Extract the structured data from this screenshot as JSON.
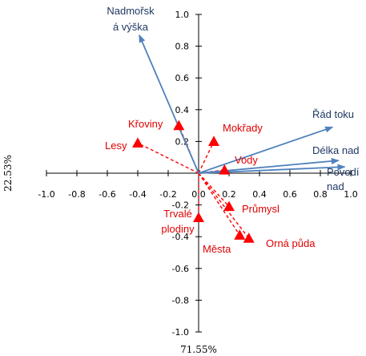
{
  "chart_data": {
    "type": "scatter",
    "subtype": "ordination-biplot",
    "xlabel": "71.55%",
    "ylabel": "22.53%",
    "xlim": [
      -1.0,
      1.0
    ],
    "ylim": [
      -1.0,
      1.0
    ],
    "x_ticks": [
      "-1.0",
      "-0.8",
      "-0.6",
      "-0.4",
      "-0.2",
      "0.0",
      "0.2",
      "0.4",
      "0.6",
      "0.8",
      "1.0"
    ],
    "y_ticks": [
      "-1.0",
      "-0.8",
      "-0.6",
      "-0.4",
      "-0.2",
      "0.0",
      "0.2",
      "0.4",
      "0.6",
      "0.8",
      "1.0"
    ],
    "grid": false,
    "legend": "none",
    "colors": {
      "environment": "#4F81BD",
      "environment_text": "#1F3864",
      "species": "#FF0000",
      "species_text": "#E00000"
    },
    "environmental_vectors": [
      {
        "label_lines": [
          "Nadmořsk",
          "á výška"
        ],
        "x": -0.39,
        "y": 0.87
      },
      {
        "label_lines": [
          "Řád toku"
        ],
        "x": 0.88,
        "y": 0.29
      },
      {
        "label_lines": [
          "Délka nad"
        ],
        "x": 0.92,
        "y": 0.08
      },
      {
        "label_lines": [
          "Povodí",
          "nad"
        ],
        "x": 0.96,
        "y": 0.04
      }
    ],
    "species_points": [
      {
        "label_lines": [
          "Křoviny"
        ],
        "x": -0.13,
        "y": 0.3
      },
      {
        "label_lines": [
          "Mokřady"
        ],
        "x": 0.1,
        "y": 0.2
      },
      {
        "label_lines": [
          "Lesy"
        ],
        "x": -0.4,
        "y": 0.19
      },
      {
        "label_lines": [
          "Vody"
        ],
        "x": 0.17,
        "y": 0.02
      },
      {
        "label_lines": [
          "Trvalé",
          "plodiny"
        ],
        "x": 0.0,
        "y": -0.28
      },
      {
        "label_lines": [
          "Průmysl"
        ],
        "x": 0.2,
        "y": -0.21
      },
      {
        "label_lines": [
          "Města"
        ],
        "x": 0.27,
        "y": -0.39
      },
      {
        "label_lines": [
          "Orná půda"
        ],
        "x": 0.33,
        "y": -0.41
      }
    ]
  }
}
